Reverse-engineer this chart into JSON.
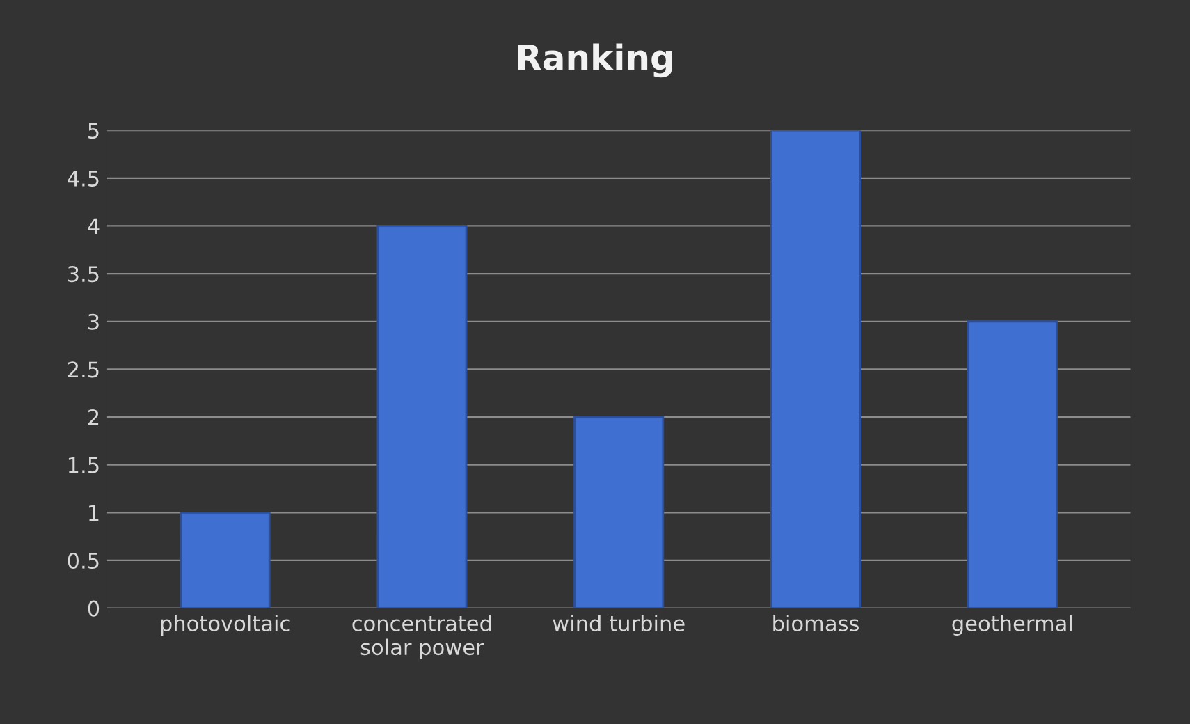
{
  "chart_data": {
    "type": "bar",
    "title": "Ranking",
    "categories": [
      "photovoltaic",
      "concentrated\nsolar power",
      "wind turbine",
      "biomass",
      "geothermal"
    ],
    "values": [
      1,
      4,
      2,
      5,
      3
    ],
    "color": "#3f6fd1",
    "ylim": [
      0,
      5
    ],
    "yticks": [
      0,
      0.5,
      1,
      1.5,
      2,
      2.5,
      3,
      3.5,
      4,
      4.5,
      5
    ],
    "grid": "y"
  }
}
